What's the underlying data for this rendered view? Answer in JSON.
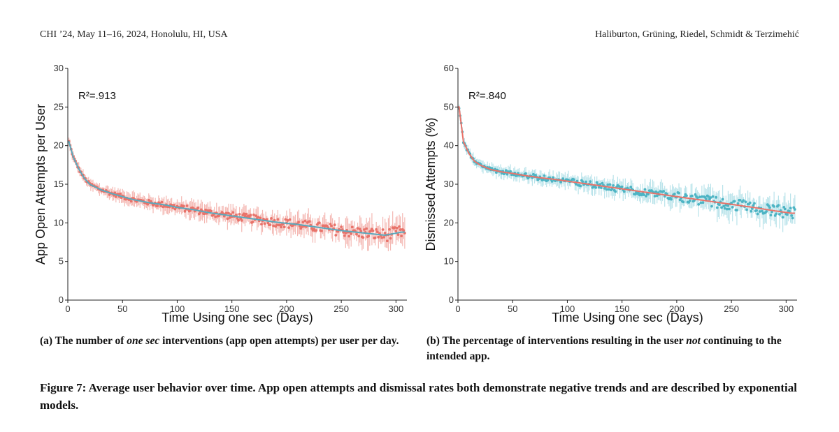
{
  "header": {
    "left": "CHI ’24, May 11–16, 2024, Honolulu, HI, USA",
    "right": "Haliburton, Grüning, Riedel, Schmidt & Terzimehić"
  },
  "captions": {
    "a": {
      "prefix": "(a) The number of ",
      "em": "one sec",
      "suffix": " interventions (app open attempts) per user per day."
    },
    "b": {
      "prefix": "(b) The percentage of interventions resulting in the user ",
      "em": "not",
      "suffix": " continuing to the intended app."
    },
    "figure": "Figure 7: Average user behavior over time. App open attempts and dismissal rates both demonstrate negative trends and are described by exponential models."
  },
  "chart_data": [
    {
      "type": "scatter",
      "xlabel": "Time Using one sec (Days)",
      "ylabel": "App Open Attempts per User",
      "annotation": "R²=.913",
      "xlim": [
        0,
        310
      ],
      "ylim": [
        0,
        30
      ],
      "xticks": [
        "0",
        "50",
        "100",
        "150",
        "200",
        "250",
        "300"
      ],
      "yticks": [
        "0",
        "5",
        "10",
        "15",
        "20",
        "25",
        "30"
      ],
      "grid": false,
      "colors": {
        "points": "#e8736a",
        "error": "#f4b8b3",
        "fit": "#5aa9bd"
      },
      "points_approx": [
        [
          1,
          20.5
        ],
        [
          5,
          18.5
        ],
        [
          10,
          17
        ],
        [
          15,
          15.8
        ],
        [
          20,
          15
        ],
        [
          30,
          14.3
        ],
        [
          40,
          13.8
        ],
        [
          50,
          13.4
        ],
        [
          60,
          13.0
        ],
        [
          75,
          12.6
        ],
        [
          90,
          12.3
        ],
        [
          100,
          12.0
        ],
        [
          115,
          11.7
        ],
        [
          130,
          11.3
        ],
        [
          150,
          10.9
        ],
        [
          170,
          10.5
        ],
        [
          190,
          10.1
        ],
        [
          210,
          9.8
        ],
        [
          230,
          9.4
        ],
        [
          250,
          9.0
        ],
        [
          270,
          8.7
        ],
        [
          290,
          8.4
        ],
        [
          305,
          8.8
        ]
      ],
      "fit_model": "exponential"
    },
    {
      "type": "scatter",
      "xlabel": "Time Using one sec (Days)",
      "ylabel": "Dismissed Attempts (%)",
      "annotation": "R²=.840",
      "xlim": [
        0,
        310
      ],
      "ylim": [
        0,
        60
      ],
      "xticks": [
        "0",
        "50",
        "100",
        "150",
        "200",
        "250",
        "300"
      ],
      "yticks": [
        "0",
        "10",
        "20",
        "30",
        "40",
        "50",
        "60"
      ],
      "grid": false,
      "colors": {
        "points": "#4db4c4",
        "error": "#b9e3ea",
        "fit": "#e8736a"
      },
      "points_approx": [
        [
          1,
          50
        ],
        [
          5,
          41
        ],
        [
          10,
          38
        ],
        [
          15,
          36
        ],
        [
          20,
          35
        ],
        [
          30,
          33.8
        ],
        [
          40,
          33.2
        ],
        [
          50,
          32.8
        ],
        [
          60,
          32.3
        ],
        [
          75,
          31.7
        ],
        [
          90,
          31.2
        ],
        [
          100,
          30.8
        ],
        [
          115,
          30.2
        ],
        [
          130,
          29.6
        ],
        [
          150,
          28.8
        ],
        [
          170,
          28.0
        ],
        [
          190,
          27.2
        ],
        [
          210,
          26.4
        ],
        [
          230,
          25.6
        ],
        [
          250,
          24.8
        ],
        [
          270,
          24.0
        ],
        [
          290,
          23.1
        ],
        [
          305,
          22.5
        ]
      ],
      "fit_model": "exponential"
    }
  ]
}
